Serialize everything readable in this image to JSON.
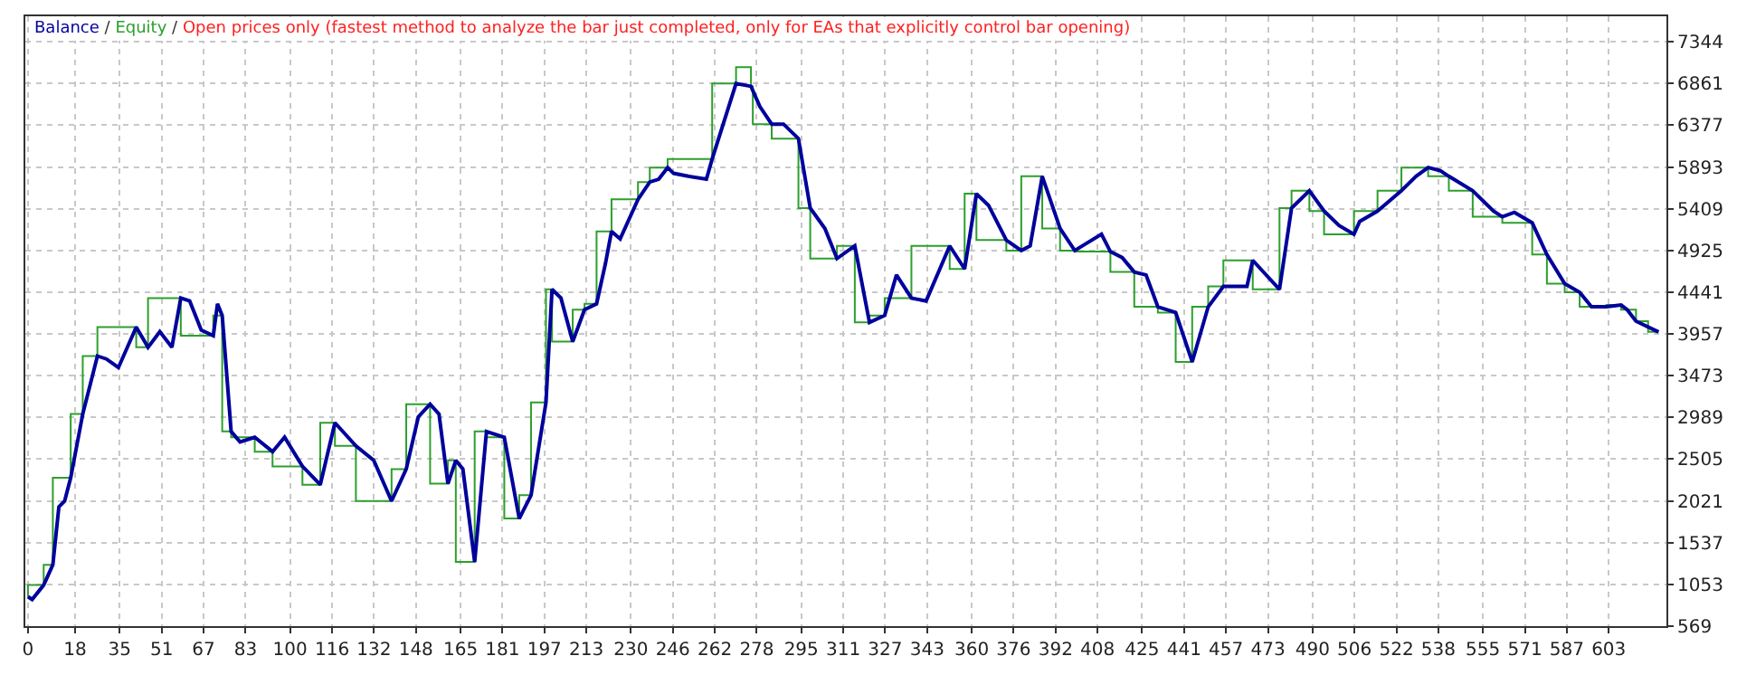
{
  "chart_data": {
    "type": "line",
    "legend": "top left",
    "annotations": [
      "/",
      "Open prices only (fastest method to analyze the bar just completed, only for EAs that explicitly control bar opening)"
    ],
    "xlim": [
      -1,
      625
    ],
    "xticks": [
      0,
      18,
      35,
      51,
      67,
      83,
      100,
      116,
      132,
      148,
      165,
      181,
      197,
      213,
      230,
      246,
      262,
      278,
      295,
      311,
      327,
      343,
      360,
      376,
      392,
      408,
      425,
      441,
      457,
      473,
      490,
      506,
      522,
      538,
      555,
      571,
      587,
      603
    ],
    "ylim": [
      569,
      7640
    ],
    "yticks": [
      569,
      1053,
      1537,
      2021,
      2505,
      2989,
      3473,
      3957,
      4441,
      4925,
      5409,
      5893,
      6377,
      6861,
      7344
    ],
    "grid": true,
    "series": [
      {
        "name": "Balance",
        "color": "#00009c",
        "x": [
          0,
          1.6,
          6,
          9.5,
          11.8,
          14,
          16.3,
          20.9,
          26.5,
          29.9,
          34.5,
          41.3,
          45.8,
          50.3,
          54.9,
          58.3,
          61.7,
          66.1,
          70.7,
          72.3,
          74.1,
          77.5,
          80.9,
          86.5,
          93.3,
          97.9,
          104.7,
          111.5,
          117.1,
          125.1,
          131.9,
          138.7,
          144.3,
          148.9,
          153.4,
          156.8,
          160.2,
          163.2,
          165.9,
          170.4,
          174.9,
          181.7,
          187.4,
          191.9,
          197.6,
          199.9,
          203.3,
          207.8,
          212.3,
          216.9,
          220.3,
          222.6,
          225.9,
          232.7,
          237.2,
          240.6,
          244,
          246.3,
          251.9,
          258.8,
          261,
          270.1,
          275.8,
          279.2,
          283.7,
          288.2,
          293.9,
          298.4,
          304,
          308.6,
          315.4,
          321,
          326.8,
          331.3,
          337,
          342.6,
          351.6,
          357.3,
          361.8,
          366.4,
          373.2,
          378.9,
          382.3,
          386.9,
          393.7,
          399.3,
          409.5,
          412.9,
          417.4,
          422,
          426.5,
          431,
          437.8,
          444.1,
          450.2,
          456,
          465,
          467.2,
          477.4,
          482,
          488.8,
          494.4,
          500.1,
          505.8,
          508,
          514.8,
          523.9,
          529.5,
          534.1,
          538.6,
          542,
          551.1,
          559,
          562.4,
          567,
          573.8,
          579.4,
          586.2,
          591.9,
          596.4,
          602.1,
          607.7,
          610,
          613.4,
          622
        ],
        "values": [
          910,
          878,
          1045,
          1281,
          1953,
          2020,
          2289,
          3028,
          3701,
          3667,
          3567,
          4036,
          3802,
          3983,
          3802,
          4373,
          4339,
          4003,
          3936,
          4306,
          4171,
          2826,
          2705,
          2759,
          2592,
          2759,
          2422,
          2209,
          2927,
          2659,
          2491,
          2019,
          2390,
          2995,
          3142,
          3028,
          2221,
          2491,
          2390,
          1313,
          2826,
          2759,
          1817,
          2087,
          3163,
          4474,
          4373,
          3869,
          4238,
          4306,
          4776,
          5146,
          5059,
          5517,
          5718,
          5751,
          5886,
          5819,
          5785,
          5751,
          5986,
          6860,
          6828,
          6592,
          6390,
          6390,
          6222,
          5416,
          5180,
          4831,
          4978,
          4091,
          4171,
          4641,
          4373,
          4339,
          4978,
          4710,
          5583,
          5448,
          5045,
          4924,
          4978,
          5785,
          5180,
          4924,
          5113,
          4911,
          4843,
          4675,
          4641,
          4272,
          4205,
          3633,
          4272,
          4508,
          4508,
          4810,
          4474,
          5416,
          5618,
          5382,
          5214,
          5113,
          5261,
          5382,
          5618,
          5785,
          5886,
          5852,
          5785,
          5618,
          5382,
          5315,
          5367,
          5245,
          4877,
          4540,
          4440,
          4272,
          4272,
          4292,
          4238,
          4105,
          3980
        ]
      },
      {
        "name": "Equity",
        "color": "#2ca02c",
        "type": "step",
        "x": [
          0,
          6,
          9.5,
          16.3,
          20.9,
          26.5,
          41.3,
          45.8,
          58.3,
          70.7,
          74.1,
          77.5,
          86.5,
          93.3,
          104.7,
          111.5,
          117.1,
          125.1,
          138.7,
          144.3,
          153.4,
          160.2,
          163.2,
          170.4,
          174.9,
          181.7,
          187.4,
          191.9,
          197.6,
          199.9,
          207.8,
          212.3,
          216.9,
          222.6,
          232.7,
          237.2,
          244,
          261,
          270.1,
          275.8,
          276.5,
          283.7,
          293.9,
          298.4,
          308.6,
          315.4,
          321,
          326.8,
          337,
          351.6,
          357.3,
          361.8,
          373.2,
          378.9,
          386.9,
          393.7,
          399.3,
          412.9,
          422,
          431,
          437.8,
          444.1,
          450.2,
          456,
          467.2,
          477.4,
          482,
          488.8,
          494.4,
          505.8,
          514.8,
          523.9,
          534.1,
          542,
          551.1,
          562.4,
          573.8,
          579.4,
          586.2,
          591.9,
          602.1,
          607.7,
          613.4,
          618,
          622
        ],
        "values": [
          910,
          1045,
          1281,
          2289,
          3028,
          3701,
          4036,
          3802,
          4373,
          3936,
          4171,
          2826,
          2759,
          2592,
          2422,
          2209,
          2927,
          2659,
          2019,
          2390,
          3142,
          2221,
          2491,
          1313,
          2826,
          2759,
          1817,
          2087,
          3163,
          4474,
          3869,
          4238,
          4306,
          5146,
          5517,
          5718,
          5886,
          5986,
          6860,
          7050,
          6828,
          6390,
          6222,
          5416,
          4831,
          4978,
          4091,
          4171,
          4373,
          4978,
          4710,
          5583,
          5045,
          4924,
          5785,
          5180,
          4924,
          4911,
          4675,
          4272,
          4205,
          3633,
          4272,
          4508,
          4810,
          4474,
          5416,
          5618,
          5382,
          5113,
          5382,
          5618,
          5886,
          5785,
          5618,
          5315,
          5245,
          4877,
          4540,
          4440,
          4272,
          4292,
          4238,
          4105,
          3980
        ]
      }
    ]
  }
}
